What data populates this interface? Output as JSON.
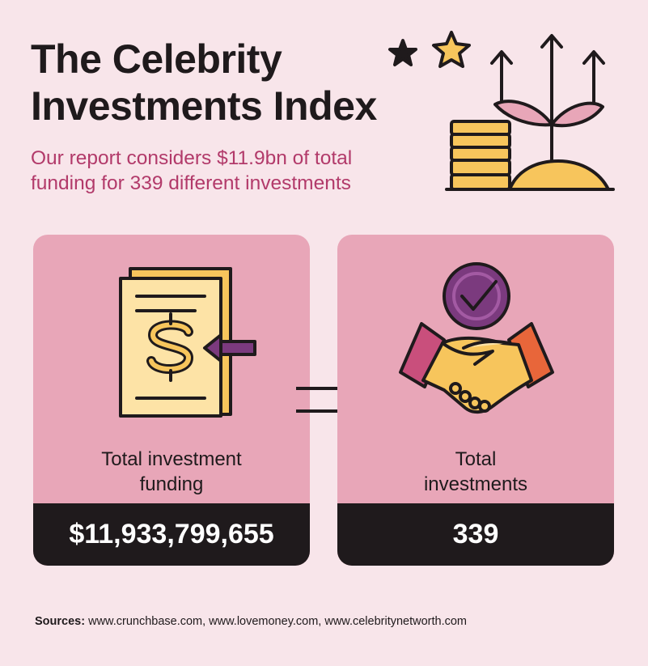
{
  "header": {
    "title_line1": "The Celebrity",
    "title_line2": "Investments Index",
    "subtitle_line1": "Our report considers $11.9bn of total",
    "subtitle_line2": "funding for 339 different investments"
  },
  "cards": {
    "funding": {
      "label_line1": "Total investment",
      "label_line2": "funding",
      "value": "$11,933,799,655",
      "icon": "money-document-icon"
    },
    "investments": {
      "label_line1": "Total",
      "label_line2": "investments",
      "value": "339",
      "icon": "handshake-icon"
    }
  },
  "sources": {
    "label": "Sources:",
    "text": " www.crunchbase.com, www.lovemoney.com, www.celebritynetworth.com"
  },
  "colors": {
    "background": "#f8e5ea",
    "card": "#e8a6b8",
    "value_bar": "#1f1a1c",
    "accent": "#b23a6a",
    "gold": "#f7c55c",
    "purple": "#7b3a7e"
  }
}
